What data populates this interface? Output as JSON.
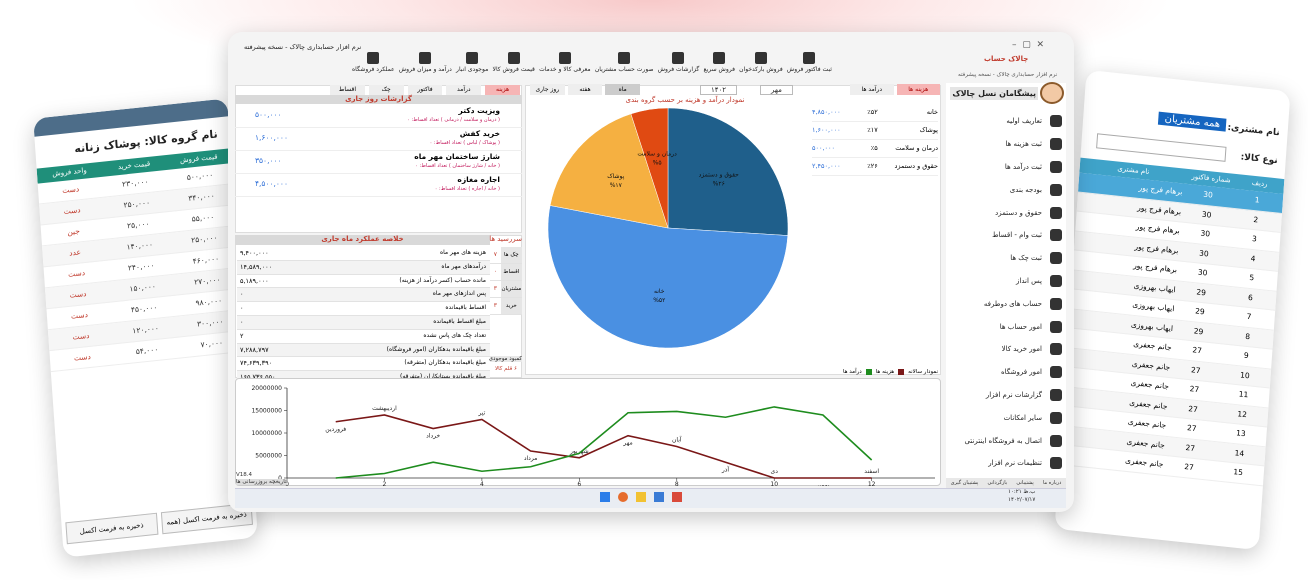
{
  "window": {
    "title": "نرم افزار حسابداری چالاک - نسخه پیشرفته",
    "brand": "چالاک حساب",
    "brand_sub": "نرم افزار حسابداری چالاک - نسخه پیشرفته",
    "version": "V18.4",
    "history": "تاریخچه بروزرسانی ها"
  },
  "toolbar": [
    "ثبت فاکتور فروش",
    "فروش بارکدخوان",
    "فروش سریع",
    "گزارشات فروش",
    "صورت حساب مشتریان",
    "معرفی کالا و خدمات",
    "قیمت فروش کالا",
    "موجودی انبار",
    "درآمد و میزان فروش",
    "عملکرد فروشگاه"
  ],
  "sidebar": {
    "user": "پیشگامان نسل چالاک",
    "items": [
      "تعاریف اولیه",
      "ثبت هزینه ها",
      "ثبت درآمد ها",
      "بودجه بندی",
      "حقوق و دستمزد",
      "ثبت وام - اقساط",
      "ثبت چک ها",
      "پس انداز",
      "حساب های دوطرفه",
      "امور حساب ها",
      "امور خرید کالا",
      "امور فروشگاه",
      "گزارشات نرم افزار",
      "سایر امکانات",
      "اتصال به فروشگاه اینترنتی",
      "تنظیمات نرم افزار"
    ],
    "footer": [
      "درباره ما",
      "پشتیبانی",
      "بازگردانی",
      "پشتیبان گیری"
    ]
  },
  "pie_panel": {
    "tabs": [
      "هزینه ها",
      "درآمد ها"
    ],
    "periods": [
      "ماه",
      "هفته",
      "روز جاری"
    ],
    "month": "مهر",
    "year": "۱۴۰۲",
    "legend": [
      [
        "خانه",
        "۴,۸۵۰,۰۰۰",
        "٪۵۲"
      ],
      [
        "پوشاک",
        "۱,۶۰۰,۰۰۰",
        "٪۱۷"
      ],
      [
        "درمان و سلامت",
        "۵۰۰,۰۰۰",
        "٪۵"
      ],
      [
        "حقوق و دستمزد",
        "۲,۴۵۰,۰۰۰",
        "٪۲۶"
      ]
    ]
  },
  "today": {
    "title": "گزارشات روز جاری",
    "tabs": [
      "هزینه",
      "درآمد",
      "فاکتور",
      "چک",
      "اقساط"
    ],
    "items": [
      {
        "title": "ویزیت دکتر",
        "detail": "( درمان و سلامت / درمانی ) تعداد اقساط: ۰",
        "amount": "۵۰۰,۰۰۰"
      },
      {
        "title": "خرید کفش",
        "detail": "( پوشاک / لباس ) تعداد اقساط: ۰",
        "amount": "۱,۶۰۰,۰۰۰"
      },
      {
        "title": "شارژ ساختمان مهر ماه",
        "detail": "( خانه / شارژ ساختمان ) تعداد اقساط: ۰",
        "amount": "۳۵۰,۰۰۰"
      },
      {
        "title": "اجاره مغازه",
        "detail": "( خانه / اجاره ) تعداد اقساط: ۰",
        "amount": "۴,۵۰۰,۰۰۰"
      }
    ]
  },
  "summary": {
    "title": "خلاصه عملکرد ماه جاری",
    "rows": [
      [
        "هزینه های مهر ماه",
        "۹,۴۰۰,۰۰۰"
      ],
      [
        "درآمدهای مهر ماه",
        "۱۴,۵۸۹,۰۰۰"
      ],
      [
        "مانده حساب (کسر درآمد از هزینه)",
        "۵,۱۸۹,۰۰۰"
      ],
      [
        "پس اندازهای مهر ماه",
        "۰"
      ],
      [
        "اقساط باقیمانده",
        "۰"
      ],
      [
        "مبلغ اقساط باقیمانده",
        "۰"
      ],
      [
        "تعداد چک های پاس نشده",
        "۲"
      ],
      [
        "مبلغ باقیمانده بدهکاران (امور فروشگاه)",
        "۷,۲۸۸,۷۹۷"
      ],
      [
        "مبلغ باقیمانده بدهکاران (متفرقه)",
        "۷۴,۶۳۹,۳۹۰"
      ],
      [
        "مبلغ باقیمانده بستانکاران (متفرقه)",
        "۱۶۵,۷۳۶,۵۵۰"
      ]
    ],
    "due_title": "سررسید ها",
    "due": [
      [
        "چک ها",
        "۷"
      ],
      [
        "اقساط",
        "۰"
      ],
      [
        "مشتریان",
        "۳"
      ],
      [
        "خرید",
        "۳"
      ]
    ],
    "shortage_label": "کمبود موجودی",
    "shortage": "۶ قلم کالا"
  },
  "taskbar": {
    "time": "۱۰:۲۱ ب.ظ",
    "date": "۱۴۰۲/۰۷/۱۷"
  },
  "left_card": {
    "title": "نام گروه کالا: پوشاک زنانه",
    "columns": [
      "قیمت فروش",
      "قیمت خرید",
      "واحد فروش"
    ],
    "rows": [
      [
        "۵۰۰,۰۰۰",
        "۲۳۰,۰۰۰",
        "دست"
      ],
      [
        "۳۴۰,۰۰۰",
        "۲۵۰,۰۰۰",
        "دست"
      ],
      [
        "۵۵,۰۰۰",
        "۲۵,۰۰۰",
        "جین"
      ],
      [
        "۲۵۰,۰۰۰",
        "۱۴۰,۰۰۰",
        "عدد"
      ],
      [
        "۴۶۰,۰۰۰",
        "۲۴۰,۰۰۰",
        "دست"
      ],
      [
        "۲۷۰,۰۰۰",
        "۱۵۰,۰۰۰",
        "دست"
      ],
      [
        "۹۸۰,۰۰۰",
        "۴۵۰,۰۰۰",
        "دست"
      ],
      [
        "۳۰۰,۰۰۰",
        "۱۲۰,۰۰۰",
        "دست"
      ],
      [
        "۷۰,۰۰۰",
        "۵۴,۰۰۰",
        "دست"
      ]
    ],
    "buttons": [
      "ذخیره به فرمت اکسل (همه",
      "ذخیره به فرمت اکسل"
    ]
  },
  "right_card": {
    "customer_label": "نام مشتری:",
    "customer_value": "همه مشتریان",
    "product_label": "نوع کالا:",
    "columns": [
      "ردیف",
      "شماره فاکتور",
      "نام مشتری"
    ],
    "rows": [
      [
        "1",
        "30",
        "برهام فرج پور"
      ],
      [
        "2",
        "30",
        "برهام فرج پور"
      ],
      [
        "3",
        "30",
        "برهام فرج پور"
      ],
      [
        "4",
        "30",
        "برهام فرج پور"
      ],
      [
        "5",
        "30",
        "برهام فرج پور"
      ],
      [
        "6",
        "29",
        "ایهاب بهروزی"
      ],
      [
        "7",
        "29",
        "ایهاب بهروزی"
      ],
      [
        "8",
        "29",
        "ایهاب بهروزی"
      ],
      [
        "9",
        "27",
        "جانم جعفری"
      ],
      [
        "10",
        "27",
        "جانم جعفری"
      ],
      [
        "11",
        "27",
        "جانم جعفری"
      ],
      [
        "12",
        "27",
        "جانم جعفری"
      ],
      [
        "13",
        "27",
        "جانم جعفری"
      ],
      [
        "14",
        "27",
        "جانم جعفری"
      ],
      [
        "15",
        "27",
        "جانم جعفری"
      ]
    ]
  },
  "chart_data": [
    {
      "type": "pie",
      "title": "نمودار درآمد و هزینه بر حسب گروه بندی",
      "categories": [
        "حقوق و دستمزد",
        "خانه",
        "پوشاک",
        "درمان و سلامت"
      ],
      "values": [
        26,
        52,
        17,
        5
      ],
      "value_labels": [
        "%۲۶",
        "%۵۲",
        "%۱۷",
        "%۵"
      ],
      "colors": [
        "#1f5f8b",
        "#4a90e2",
        "#f5b041",
        "#e04a12"
      ]
    },
    {
      "type": "line",
      "title": "نمودار سالانه",
      "x": [
        1,
        2,
        3,
        4,
        5,
        6,
        7,
        8,
        9,
        10,
        11,
        12
      ],
      "series": [
        {
          "name": "هزینه ها",
          "color": "#7a1717",
          "values": [
            12500000,
            14000000,
            11000000,
            13000000,
            6000000,
            4500000,
            9400000,
            7000000,
            3500000,
            0,
            0,
            0
          ],
          "point_labels": [
            "فروردین",
            "اردیبهشت",
            "خرداد",
            "تیر",
            "مرداد",
            "شهریور",
            "مهر",
            "آبان",
            "آذر",
            "دی",
            "بهمن",
            "اسفند"
          ]
        },
        {
          "name": "درآمد ها",
          "color": "#1e8c1e",
          "values": [
            0,
            1000000,
            3500000,
            1500000,
            2500000,
            5500000,
            14500000,
            14800000,
            13500000,
            15800000,
            14000000,
            4000000
          ]
        }
      ],
      "xlim": [
        0,
        13.3
      ],
      "ylim": [
        0,
        20000000
      ],
      "xticks": [
        0,
        2,
        4,
        6,
        8,
        10,
        12
      ],
      "yticks": [
        0,
        5000000,
        10000000,
        15000000,
        20000000
      ],
      "grid": false
    }
  ]
}
